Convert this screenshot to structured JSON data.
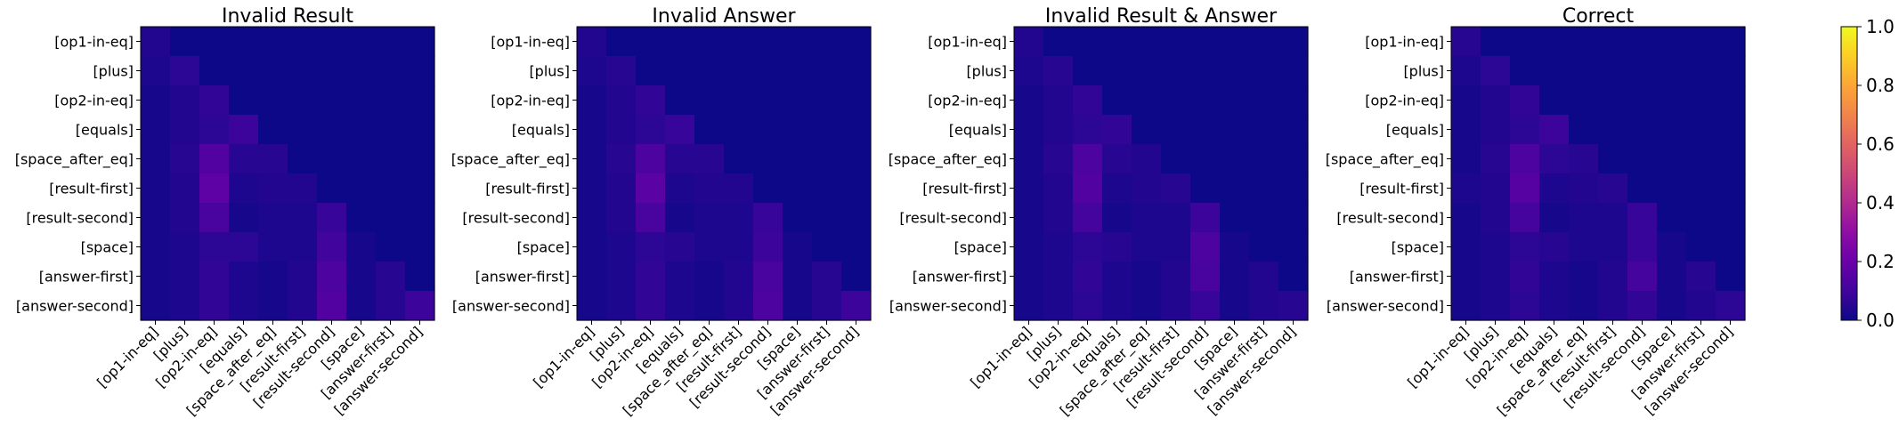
{
  "chart_data": {
    "type": "heatmap",
    "colormap": "plasma",
    "vmin": 0.0,
    "vmax": 1.0,
    "colorbar": {
      "ticks": [
        "0.0",
        "0.2",
        "0.4",
        "0.6",
        "0.8",
        "1.0"
      ]
    },
    "labels": [
      "[op1-in-eq]",
      "[plus]",
      "[op2-in-eq]",
      "[equals]",
      "[space_after_eq]",
      "[result-first]",
      "[result-second]",
      "[space]",
      "[answer-first]",
      "[answer-second]"
    ],
    "panels": [
      {
        "title": "Invalid Result",
        "matrix": [
          [
            0.04,
            0,
            0,
            0,
            0,
            0,
            0,
            0,
            0,
            0
          ],
          [
            0.03,
            0.06,
            0,
            0,
            0,
            0,
            0,
            0,
            0,
            0
          ],
          [
            0.02,
            0.04,
            0.07,
            0,
            0,
            0,
            0,
            0,
            0,
            0
          ],
          [
            0.02,
            0.04,
            0.06,
            0.09,
            0,
            0,
            0,
            0,
            0,
            0
          ],
          [
            0.02,
            0.05,
            0.14,
            0.05,
            0.05,
            0,
            0,
            0,
            0,
            0
          ],
          [
            0.02,
            0.04,
            0.17,
            0.03,
            0.04,
            0.04,
            0,
            0,
            0,
            0
          ],
          [
            0.02,
            0.04,
            0.12,
            0.02,
            0.03,
            0.03,
            0.08,
            0,
            0,
            0
          ],
          [
            0.02,
            0.03,
            0.06,
            0.06,
            0.03,
            0.03,
            0.1,
            0.02,
            0,
            0
          ],
          [
            0.02,
            0.03,
            0.07,
            0.03,
            0.02,
            0.04,
            0.13,
            0.02,
            0.05,
            0
          ],
          [
            0.02,
            0.03,
            0.07,
            0.03,
            0.02,
            0.04,
            0.14,
            0.02,
            0.05,
            0.09
          ]
        ]
      },
      {
        "title": "Invalid Answer",
        "matrix": [
          [
            0.04,
            0,
            0,
            0,
            0,
            0,
            0,
            0,
            0,
            0
          ],
          [
            0.03,
            0.05,
            0,
            0,
            0,
            0,
            0,
            0,
            0,
            0
          ],
          [
            0.02,
            0.04,
            0.07,
            0,
            0,
            0,
            0,
            0,
            0,
            0
          ],
          [
            0.02,
            0.04,
            0.06,
            0.08,
            0,
            0,
            0,
            0,
            0,
            0
          ],
          [
            0.02,
            0.05,
            0.13,
            0.05,
            0.05,
            0,
            0,
            0,
            0,
            0
          ],
          [
            0.02,
            0.04,
            0.16,
            0.03,
            0.04,
            0.04,
            0,
            0,
            0,
            0
          ],
          [
            0.02,
            0.04,
            0.12,
            0.02,
            0.03,
            0.03,
            0.08,
            0,
            0,
            0
          ],
          [
            0.02,
            0.03,
            0.06,
            0.05,
            0.03,
            0.03,
            0.09,
            0.02,
            0,
            0
          ],
          [
            0.02,
            0.03,
            0.07,
            0.03,
            0.02,
            0.04,
            0.12,
            0.02,
            0.05,
            0
          ],
          [
            0.02,
            0.03,
            0.07,
            0.03,
            0.02,
            0.04,
            0.13,
            0.02,
            0.05,
            0.09
          ]
        ]
      },
      {
        "title": "Invalid Result & Answer",
        "matrix": [
          [
            0.04,
            0,
            0,
            0,
            0,
            0,
            0,
            0,
            0,
            0
          ],
          [
            0.03,
            0.05,
            0,
            0,
            0,
            0,
            0,
            0,
            0,
            0
          ],
          [
            0.02,
            0.04,
            0.07,
            0,
            0,
            0,
            0,
            0,
            0,
            0
          ],
          [
            0.02,
            0.04,
            0.06,
            0.07,
            0,
            0,
            0,
            0,
            0,
            0
          ],
          [
            0.02,
            0.05,
            0.13,
            0.05,
            0.04,
            0,
            0,
            0,
            0,
            0
          ],
          [
            0.02,
            0.04,
            0.14,
            0.03,
            0.04,
            0.05,
            0,
            0,
            0,
            0
          ],
          [
            0.02,
            0.04,
            0.11,
            0.02,
            0.03,
            0.03,
            0.09,
            0,
            0,
            0
          ],
          [
            0.02,
            0.03,
            0.06,
            0.05,
            0.03,
            0.03,
            0.13,
            0.02,
            0,
            0
          ],
          [
            0.02,
            0.03,
            0.07,
            0.03,
            0.02,
            0.04,
            0.12,
            0.02,
            0.04,
            0
          ],
          [
            0.02,
            0.03,
            0.06,
            0.03,
            0.02,
            0.04,
            0.08,
            0.02,
            0.04,
            0.05
          ]
        ]
      },
      {
        "title": "Correct",
        "matrix": [
          [
            0.05,
            0,
            0,
            0,
            0,
            0,
            0,
            0,
            0,
            0
          ],
          [
            0.03,
            0.06,
            0,
            0,
            0,
            0,
            0,
            0,
            0,
            0
          ],
          [
            0.02,
            0.04,
            0.07,
            0,
            0,
            0,
            0,
            0,
            0,
            0
          ],
          [
            0.02,
            0.04,
            0.06,
            0.09,
            0,
            0,
            0,
            0,
            0,
            0
          ],
          [
            0.02,
            0.05,
            0.13,
            0.06,
            0.05,
            0,
            0,
            0,
            0,
            0
          ],
          [
            0.03,
            0.04,
            0.15,
            0.03,
            0.04,
            0.05,
            0,
            0,
            0,
            0
          ],
          [
            0.02,
            0.04,
            0.11,
            0.02,
            0.03,
            0.03,
            0.08,
            0,
            0,
            0
          ],
          [
            0.02,
            0.03,
            0.06,
            0.05,
            0.03,
            0.03,
            0.08,
            0.02,
            0,
            0
          ],
          [
            0.02,
            0.03,
            0.07,
            0.03,
            0.02,
            0.04,
            0.11,
            0.02,
            0.05,
            0
          ],
          [
            0.02,
            0.03,
            0.06,
            0.03,
            0.02,
            0.04,
            0.07,
            0.02,
            0.04,
            0.06
          ]
        ]
      }
    ]
  }
}
